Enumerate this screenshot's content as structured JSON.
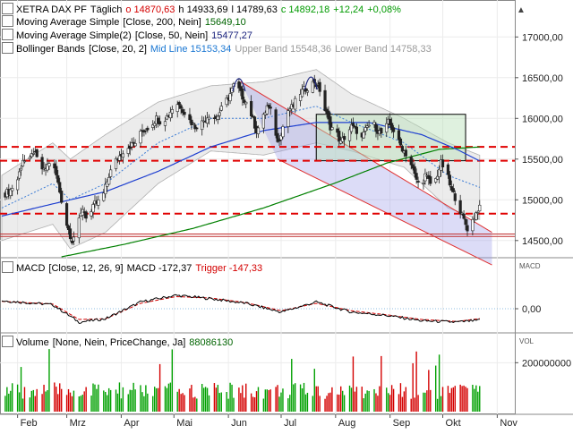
{
  "panels": {
    "price": {
      "title": "XETRA DAX PF",
      "period": "Täglich",
      "open": "o 14870,63",
      "high": "h 14933,69",
      "low": "l 14789,63",
      "close": "c 14892,18",
      "change": "+12,24",
      "change_pct": "+0,08%",
      "ma200_label": "Moving Average Simple",
      "ma200_params": "[Close, 200, Nein]",
      "ma200_value": "15649,10",
      "ma50_label": "Moving Average Simple(2)",
      "ma50_params": "[Close, 50, Nein]",
      "ma50_value": "15477,27",
      "bb_label": "Bollinger Bands",
      "bb_params": "[Close, 20, 2]",
      "bb_mid": "Mid Line 15153,34",
      "bb_upper": "Upper Band 15548,36",
      "bb_lower": "Lower Band 14758,33"
    },
    "macd": {
      "name": "MACD",
      "params": "[Close, 12, 26, 9]",
      "value": "MACD -172,37",
      "trigger": "Trigger -147,33",
      "axis_label": "MACD"
    },
    "volume": {
      "name": "Volume",
      "params": "[None, Nein, PriceChange, Ja]",
      "value": "88086130",
      "axis_label": "VOL"
    }
  },
  "colors": {
    "up": "#00a000",
    "down": "#d40000",
    "ma200": "#008000",
    "ma50": "#1e3fd0",
    "bb_mid": "#3a7bd5",
    "support": "#e00000",
    "channel": "#6666dd"
  },
  "chart_data": [
    {
      "type": "candlestick",
      "title": "XETRA DAX PF",
      "y_ticks": [
        "17000,00",
        "16500,00",
        "16000,00",
        "15500,00",
        "15000,00",
        "14500,00"
      ],
      "y_tick_values": [
        17000,
        16500,
        16000,
        15500,
        15000,
        14500
      ],
      "ylim": [
        14300,
        17300
      ],
      "x_labels": [
        "Feb",
        "Mrz",
        "Apr",
        "Mai",
        "Jun",
        "Jul",
        "Aug",
        "Sep",
        "Okt",
        "Nov"
      ],
      "x_label_days": [
        0,
        28,
        59,
        89,
        120,
        150,
        181,
        212,
        242,
        273
      ],
      "x_range_days": [
        -10,
        283
      ],
      "last_day": 263,
      "close_series": [
        [
          -9,
          15050
        ],
        [
          -4,
          15120
        ],
        [
          0,
          15250
        ],
        [
          3,
          15500
        ],
        [
          6,
          15420
        ],
        [
          9,
          15600
        ],
        [
          12,
          15450
        ],
        [
          15,
          15350
        ],
        [
          19,
          15500
        ],
        [
          22,
          15300
        ],
        [
          25,
          15000
        ],
        [
          28,
          14700
        ],
        [
          31,
          14500
        ],
        [
          34,
          14650
        ],
        [
          37,
          14900
        ],
        [
          40,
          14750
        ],
        [
          44,
          14950
        ],
        [
          48,
          15000
        ],
        [
          52,
          15300
        ],
        [
          55,
          15450
        ],
        [
          60,
          15600
        ],
        [
          63,
          15650
        ],
        [
          67,
          15700
        ],
        [
          71,
          15850
        ],
        [
          75,
          15900
        ],
        [
          79,
          16000
        ],
        [
          82,
          15950
        ],
        [
          86,
          16050
        ],
        [
          90,
          16200
        ],
        [
          93,
          16150
        ],
        [
          97,
          16000
        ],
        [
          101,
          15900
        ],
        [
          105,
          15950
        ],
        [
          109,
          16050
        ],
        [
          113,
          16000
        ],
        [
          117,
          16150
        ],
        [
          121,
          16300
        ],
        [
          124,
          16450
        ],
        [
          127,
          16300
        ],
        [
          130,
          16200
        ],
        [
          133,
          16050
        ],
        [
          136,
          15850
        ],
        [
          139,
          15950
        ],
        [
          142,
          16150
        ],
        [
          145,
          16050
        ],
        [
          148,
          15700
        ],
        [
          151,
          15900
        ],
        [
          154,
          16100
        ],
        [
          157,
          16150
        ],
        [
          160,
          16300
        ],
        [
          163,
          16350
        ],
        [
          166,
          16400
        ],
        [
          169,
          16450
        ],
        [
          172,
          16350
        ],
        [
          175,
          16100
        ],
        [
          178,
          15900
        ],
        [
          181,
          15850
        ],
        [
          184,
          15700
        ],
        [
          187,
          15800
        ],
        [
          190,
          15900
        ],
        [
          193,
          15850
        ],
        [
          196,
          15750
        ],
        [
          199,
          15900
        ],
        [
          202,
          15950
        ],
        [
          205,
          15850
        ],
        [
          208,
          15800
        ],
        [
          211,
          15950
        ],
        [
          214,
          15850
        ],
        [
          217,
          15700
        ],
        [
          220,
          15600
        ],
        [
          223,
          15500
        ],
        [
          226,
          15300
        ],
        [
          229,
          15150
        ],
        [
          232,
          15300
        ],
        [
          235,
          15200
        ],
        [
          238,
          15250
        ],
        [
          241,
          15450
        ],
        [
          244,
          15350
        ],
        [
          247,
          15100
        ],
        [
          250,
          15000
        ],
        [
          253,
          14800
        ],
        [
          256,
          14650
        ],
        [
          259,
          14750
        ],
        [
          262,
          14880
        ],
        [
          263,
          14892
        ]
      ],
      "ma200_series": [
        [
          25,
          14300
        ],
        [
          60,
          14450
        ],
        [
          100,
          14650
        ],
        [
          140,
          14900
        ],
        [
          180,
          15200
        ],
        [
          210,
          15450
        ],
        [
          240,
          15620
        ],
        [
          263,
          15649
        ]
      ],
      "ma50_series": [
        [
          -9,
          14800
        ],
        [
          20,
          14950
        ],
        [
          50,
          15100
        ],
        [
          80,
          15350
        ],
        [
          110,
          15650
        ],
        [
          140,
          15850
        ],
        [
          170,
          15950
        ],
        [
          200,
          15950
        ],
        [
          230,
          15800
        ],
        [
          250,
          15620
        ],
        [
          263,
          15477
        ]
      ],
      "bb_mid_series": [
        [
          -9,
          14900
        ],
        [
          20,
          15200
        ],
        [
          30,
          15000
        ],
        [
          50,
          15200
        ],
        [
          80,
          15700
        ],
        [
          110,
          16000
        ],
        [
          140,
          16000
        ],
        [
          170,
          16150
        ],
        [
          190,
          15950
        ],
        [
          220,
          15700
        ],
        [
          245,
          15300
        ],
        [
          263,
          15153
        ]
      ],
      "bb_upper_series": [
        [
          -9,
          15300
        ],
        [
          20,
          15700
        ],
        [
          30,
          15500
        ],
        [
          50,
          15800
        ],
        [
          80,
          16200
        ],
        [
          110,
          16400
        ],
        [
          140,
          16450
        ],
        [
          170,
          16600
        ],
        [
          190,
          16300
        ],
        [
          220,
          16000
        ],
        [
          245,
          15700
        ],
        [
          263,
          15548
        ]
      ],
      "bb_lower_series": [
        [
          -9,
          14500
        ],
        [
          20,
          14700
        ],
        [
          30,
          14400
        ],
        [
          50,
          14600
        ],
        [
          80,
          15200
        ],
        [
          110,
          15600
        ],
        [
          140,
          15550
        ],
        [
          170,
          15700
        ],
        [
          190,
          15600
        ],
        [
          220,
          15400
        ],
        [
          245,
          14900
        ],
        [
          263,
          14758
        ]
      ],
      "support_lines": [
        15650,
        15480,
        14830
      ],
      "horizontal_lines": [
        14580,
        14550
      ],
      "channel_upper": [
        [
          127,
          16450
        ],
        [
          270,
          14600
        ]
      ],
      "channel_lower": [
        [
          148,
          15500
        ],
        [
          270,
          14200
        ]
      ],
      "box": {
        "from_day": 170,
        "to_day": 255,
        "high": 16050,
        "low": 15480
      }
    },
    {
      "type": "line",
      "title": "MACD",
      "y_ticks": [
        "0,00"
      ],
      "ylim": [
        -400,
        400
      ],
      "series": [
        {
          "name": "MACD",
          "values": [
            [
              -9,
              120
            ],
            [
              20,
              60
            ],
            [
              35,
              -200
            ],
            [
              50,
              -150
            ],
            [
              70,
              100
            ],
            [
              90,
              200
            ],
            [
              110,
              150
            ],
            [
              130,
              80
            ],
            [
              150,
              -50
            ],
            [
              170,
              100
            ],
            [
              190,
              -50
            ],
            [
              210,
              -100
            ],
            [
              230,
              -180
            ],
            [
              250,
              -200
            ],
            [
              263,
              -172
            ]
          ]
        },
        {
          "name": "Trigger",
          "values": [
            [
              -9,
              110
            ],
            [
              20,
              70
            ],
            [
              35,
              -160
            ],
            [
              50,
              -150
            ],
            [
              70,
              80
            ],
            [
              90,
              180
            ],
            [
              110,
              160
            ],
            [
              130,
              90
            ],
            [
              150,
              -30
            ],
            [
              170,
              80
            ],
            [
              190,
              -30
            ],
            [
              210,
              -90
            ],
            [
              230,
              -160
            ],
            [
              250,
              -190
            ],
            [
              263,
              -147
            ]
          ]
        }
      ]
    },
    {
      "type": "bar",
      "title": "Volume",
      "y_ticks": [
        "200000000"
      ],
      "ylim": [
        0,
        300000000
      ],
      "note": "daily volume bars, green = up day, red = down day"
    }
  ]
}
